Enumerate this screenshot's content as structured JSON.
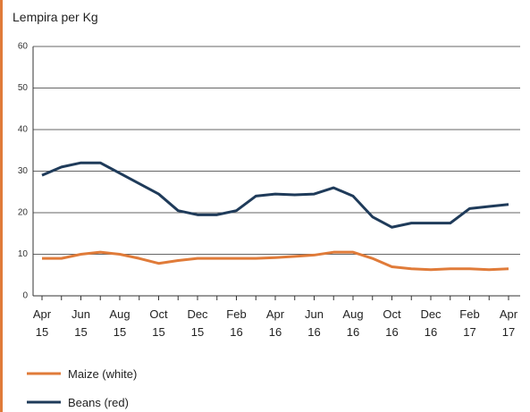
{
  "chart_data": {
    "type": "line",
    "y_axis_label": "Lempira per Kg",
    "categories": [
      "Apr 15",
      null,
      "Jun 15",
      null,
      "Aug 15",
      null,
      "Oct 15",
      null,
      "Dec 15",
      null,
      "Feb 16",
      null,
      "Apr 16",
      null,
      "Jun 16",
      null,
      "Aug 16",
      null,
      "Oct 16",
      null,
      "Dec 16",
      null,
      "Feb 17",
      null,
      "Apr 17"
    ],
    "series": [
      {
        "name": "Maize (white)",
        "color": "#e07b39",
        "values": [
          9,
          9,
          10,
          10.5,
          10,
          9,
          7.8,
          8.5,
          9,
          9,
          9,
          9,
          9.2,
          9.5,
          9.8,
          10.5,
          10.5,
          9,
          7,
          6.5,
          6.3,
          6.5,
          6.5,
          6.3,
          6.5
        ]
      },
      {
        "name": "Beans (red)",
        "color": "#1f3b5a",
        "values": [
          29,
          31,
          32,
          32,
          29.5,
          27,
          24.5,
          20.5,
          19.5,
          19.5,
          20.5,
          24,
          24.5,
          24.3,
          24.5,
          26,
          24,
          19,
          16.5,
          17.5,
          17.5,
          17.5,
          21,
          21.5,
          22
        ]
      }
    ],
    "ylim": [
      0,
      60
    ],
    "yticks": [
      0,
      10,
      20,
      30,
      40,
      50,
      60
    ],
    "grid": true
  }
}
